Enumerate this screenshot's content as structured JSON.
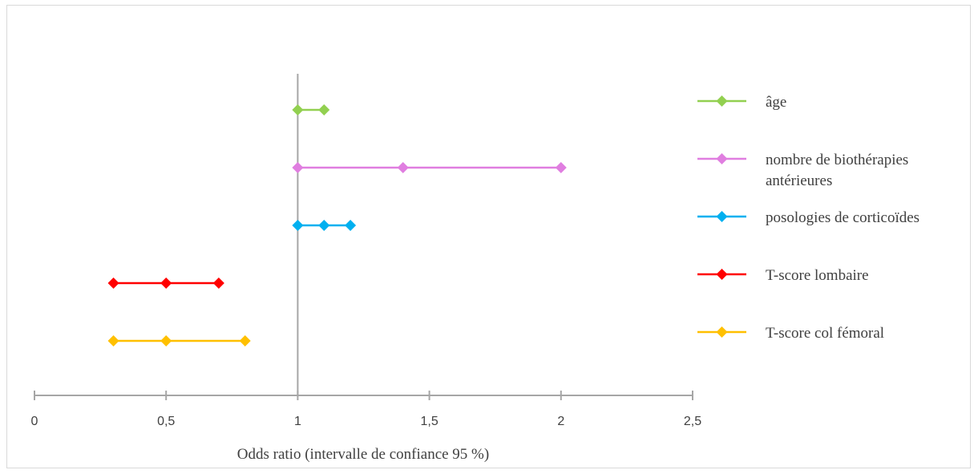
{
  "chart_data": {
    "type": "forest",
    "xlabel": "Odds ratio (intervalle de confiance 95 %)",
    "xlim": [
      0,
      2.5
    ],
    "xticks": [
      0,
      0.5,
      1,
      1.5,
      2,
      2.5
    ],
    "xtick_labels": [
      "0",
      "0,5",
      "1",
      "1,5",
      "2",
      "2,5"
    ],
    "reference_line_x": 1,
    "legend_position": "right",
    "grid": false,
    "series": [
      {
        "name": "âge",
        "name_lines": [
          "âge"
        ],
        "color": "#92d050",
        "values": [
          1.0,
          1.1
        ]
      },
      {
        "name": "nombre de biothérapies antérieures",
        "name_lines": [
          "nombre de biothérapies",
          "antérieures"
        ],
        "color": "#e07ee0",
        "values": [
          1.0,
          1.4,
          2.0
        ]
      },
      {
        "name": "posologies de corticoïdes",
        "name_lines": [
          "posologies de corticoïdes"
        ],
        "color": "#00b0f0",
        "values": [
          1.0,
          1.1,
          1.2
        ]
      },
      {
        "name": "T-score lombaire",
        "name_lines": [
          "T-score lombaire"
        ],
        "color": "#ff0000",
        "values": [
          0.3,
          0.5,
          0.7
        ]
      },
      {
        "name": "T-score col fémoral",
        "name_lines": [
          "T-score col fémoral"
        ],
        "color": "#ffc000",
        "values": [
          0.3,
          0.5,
          0.8
        ]
      }
    ]
  }
}
